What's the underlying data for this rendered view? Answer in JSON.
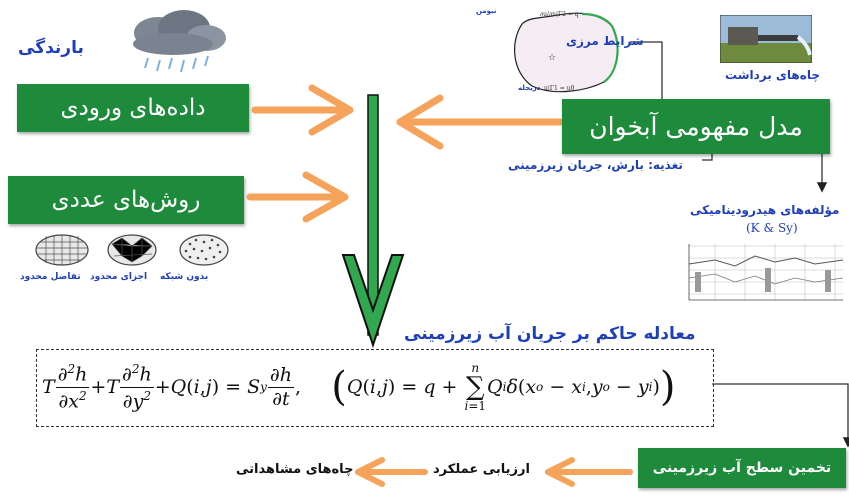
{
  "title_rainfall": "بارندگی",
  "box_input_data": "داده‌های ورودی",
  "box_numerical_methods": "روش‌های عددی",
  "box_conceptual_model": "مدل مفهومی آبخوان",
  "box_estimation": "تخمین سطح آب زیرزمینی",
  "label_boundary_conditions": "شرایط مرزی",
  "label_neumann": "نیومن",
  "label_dirichlet": "دریجله",
  "label_recharge": "تغذیه: بارش، جریان زیرزمینی",
  "label_pumping_wells": "چاه‌های برداشت",
  "label_hydro_components": "مؤلفه‌های هیدرودینامیکی",
  "label_k_sy": "(K & Sy)",
  "methods": [
    {
      "label": "بدون شبکه"
    },
    {
      "label": "اجزای محدود"
    },
    {
      "label": "تفاضل محدود"
    }
  ],
  "equation_title": "معادله حاکم بر جریان آب زیرزمینی",
  "label_evaluation": "ارزیابی عملکرد",
  "label_observation_wells": "چاه‌های مشاهداتی",
  "colors": {
    "green": "#1e8a3c",
    "orange": "#f5a25a",
    "blue": "#1f3fb8",
    "arrow_green": "#2fa84f"
  }
}
